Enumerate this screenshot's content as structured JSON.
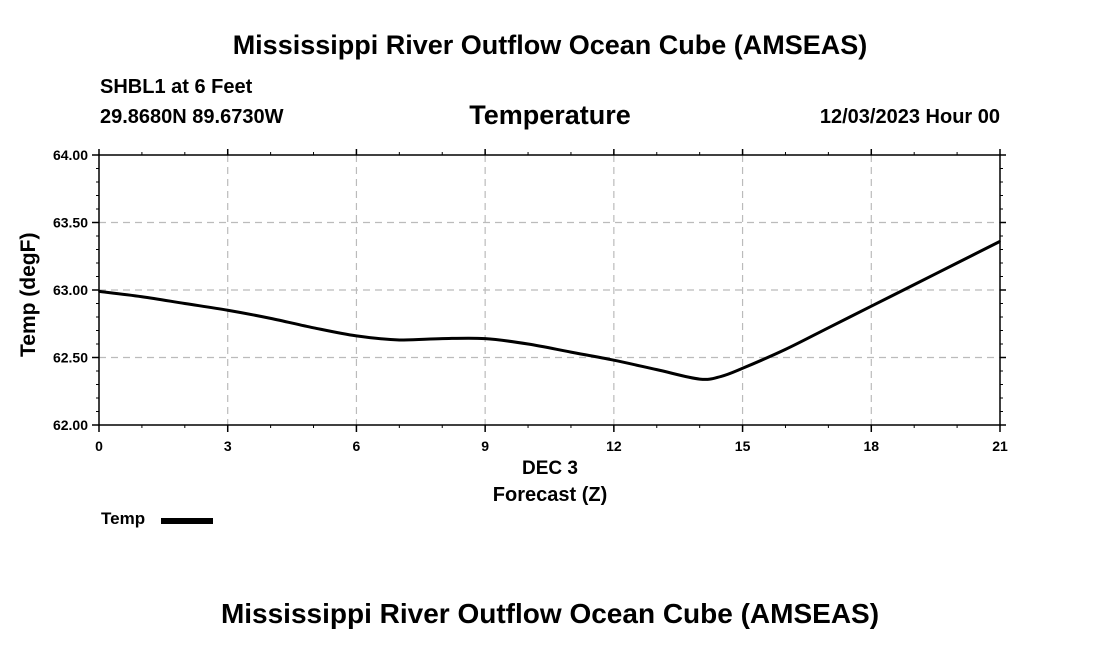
{
  "header": {
    "title": "Mississippi River Outflow Ocean Cube (AMSEAS)",
    "station": "SHBL1 at 6 Feet",
    "coordinates": "29.8680N  89.6730W",
    "variable": "Temperature",
    "datetime": "12/03/2023 Hour 00"
  },
  "footer": {
    "title": "Mississippi River Outflow Ocean Cube (AMSEAS)"
  },
  "legend": {
    "label": "Temp"
  },
  "chart_data": {
    "type": "line",
    "title": "Temperature",
    "xlabel": "Forecast (Z)",
    "xlabel_day": "DEC 3",
    "ylabel": "Temp (degF)",
    "xlim": [
      0,
      21
    ],
    "ylim": [
      62.0,
      64.0
    ],
    "xticks": [
      0,
      3,
      6,
      9,
      12,
      15,
      18,
      21
    ],
    "xtick_labels": [
      "0",
      "3",
      "6",
      "9",
      "12",
      "15",
      "18",
      "21"
    ],
    "yticks": [
      62.0,
      62.5,
      63.0,
      63.5,
      64.0
    ],
    "ytick_labels": [
      "62.00",
      "62.50",
      "63.00",
      "63.50",
      "64.00"
    ],
    "grid": true,
    "line_color": "#000000",
    "grid_color": "#bbbbbb",
    "series": [
      {
        "name": "Temp",
        "x": [
          0,
          1,
          2,
          3,
          4,
          5,
          6,
          7,
          8,
          9,
          10,
          11,
          12,
          13,
          14,
          14.5,
          15,
          16,
          17,
          18,
          19,
          20,
          21
        ],
        "values": [
          62.99,
          62.95,
          62.9,
          62.85,
          62.79,
          62.72,
          62.66,
          62.63,
          62.64,
          62.64,
          62.6,
          62.54,
          62.48,
          62.41,
          62.34,
          62.36,
          62.42,
          62.56,
          62.72,
          62.88,
          63.04,
          63.2,
          63.36
        ]
      }
    ]
  }
}
